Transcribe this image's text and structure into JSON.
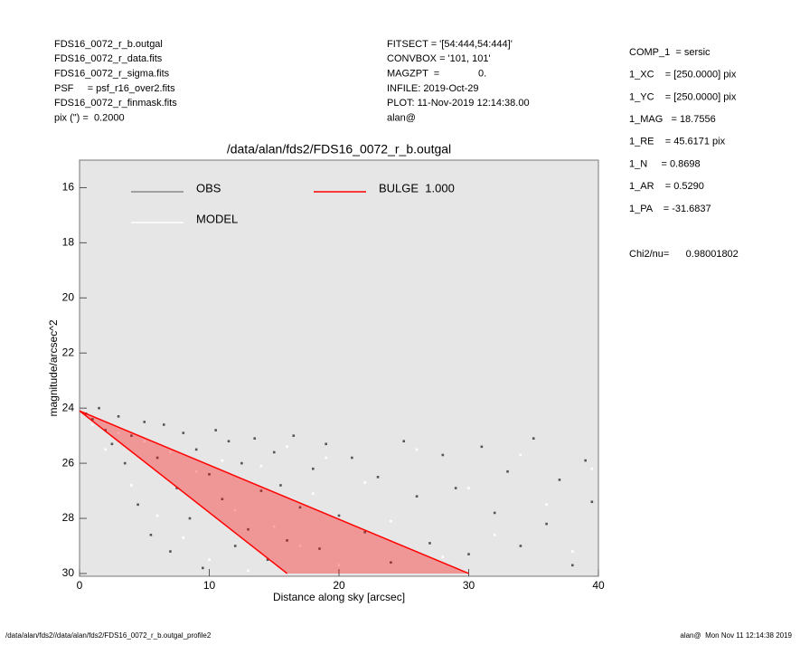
{
  "header": {
    "left": [
      "FDS16_0072_r_b.outgal",
      "FDS16_0072_r_data.fits",
      "FDS16_0072_r_sigma.fits",
      "PSF     = psf_r16_over2.fits",
      "FDS16_0072_r_finmask.fits",
      "pix (\") =  0.2000"
    ],
    "middle": [
      "FITSECT = '[54:444,54:444]'",
      "CONVBOX = '101, 101'",
      "MAGZPT  =              0.",
      "INFILE: 2019-Oct-29",
      "PLOT: 11-Nov-2019 12:14:38.00",
      "alan@"
    ],
    "params": [
      "COMP_1  = sersic",
      "1_XC    = [250.0000] pix",
      "1_YC    = [250.0000] pix",
      "1_MAG   = 18.7556",
      "1_RE    = 45.6171 pix",
      "1_N     = 0.8698",
      "1_AR    = 0.5290",
      "1_PA    = -31.6837"
    ],
    "chi2": "Chi2/nu=      0.98001802"
  },
  "footer": {
    "left": "/data/alan/fds2//data/alan/fds2/FDS16_0072_r_b.outgal_profile2",
    "right": "alan@  Mon Nov 11 12:14:38 2019"
  },
  "chart_data": {
    "type": "scatter",
    "title": "/data/alan/fds2/FDS16_0072_r_b.outgal",
    "xlabel": "Distance along sky [arcsec]",
    "ylabel": "magnitude/arcsec^2",
    "xlim": [
      0,
      40
    ],
    "ylim": [
      30.1,
      15
    ],
    "xticks": [
      0,
      10,
      20,
      30,
      40
    ],
    "yticks": [
      16,
      18,
      20,
      22,
      24,
      26,
      28,
      30
    ],
    "series": [
      {
        "name": "OBS",
        "color": "#555555",
        "x": [
          0.5,
          1,
          1.5,
          2,
          2.5,
          3,
          3.5,
          4,
          4.5,
          5,
          5.5,
          6,
          6.5,
          7,
          7.5,
          8,
          8.5,
          9,
          9.5,
          10,
          10.5,
          11,
          11.5,
          12,
          12.5,
          13,
          13.5,
          14,
          14.5,
          15,
          15.5,
          16,
          16.5,
          17,
          18,
          18.5,
          19,
          20,
          21,
          22,
          23,
          24,
          25,
          26,
          27,
          28,
          29,
          30,
          31,
          32,
          33,
          34,
          35,
          36,
          37,
          38,
          39,
          39.5
        ],
        "values": [
          24.2,
          24.4,
          24.0,
          24.8,
          25.3,
          24.3,
          26.0,
          25.0,
          27.5,
          24.5,
          28.6,
          25.8,
          24.6,
          29.2,
          26.9,
          24.9,
          28.0,
          25.5,
          29.8,
          26.4,
          24.8,
          27.3,
          25.2,
          29.0,
          26.0,
          28.4,
          25.1,
          27.0,
          29.5,
          25.6,
          26.8,
          28.8,
          25.0,
          27.6,
          26.2,
          29.1,
          25.3,
          27.9,
          25.8,
          28.5,
          26.5,
          29.6,
          25.2,
          27.2,
          28.9,
          25.7,
          26.9,
          29.3,
          25.4,
          27.8,
          26.3,
          29.0,
          25.1,
          28.2,
          26.6,
          29.7,
          25.9,
          27.4
        ]
      },
      {
        "name": "MODEL",
        "color": "#ffffff",
        "x": [
          1,
          2,
          3,
          4,
          5,
          6,
          7,
          8,
          9,
          10,
          11,
          12,
          13,
          14,
          15,
          16,
          17,
          18,
          19,
          20,
          22,
          24,
          26,
          28,
          30,
          32,
          34,
          36,
          38,
          39.5
        ],
        "values": [
          24.6,
          25.5,
          24.9,
          26.8,
          25.2,
          27.9,
          25.6,
          28.7,
          26.3,
          29.5,
          25.9,
          27.7,
          29.9,
          26.1,
          28.3,
          25.4,
          29.0,
          27.1,
          25.8,
          29.7,
          26.7,
          28.1,
          25.5,
          29.4,
          26.9,
          28.6,
          25.7,
          27.5,
          29.2,
          26.2
        ]
      },
      {
        "name": "BULGE  1.000",
        "color": "#ff0000",
        "lines": [
          {
            "x": [
              0,
              16
            ],
            "values": [
              24.1,
              30
            ]
          },
          {
            "x": [
              0,
              30
            ],
            "values": [
              24.1,
              30
            ]
          }
        ]
      }
    ]
  }
}
